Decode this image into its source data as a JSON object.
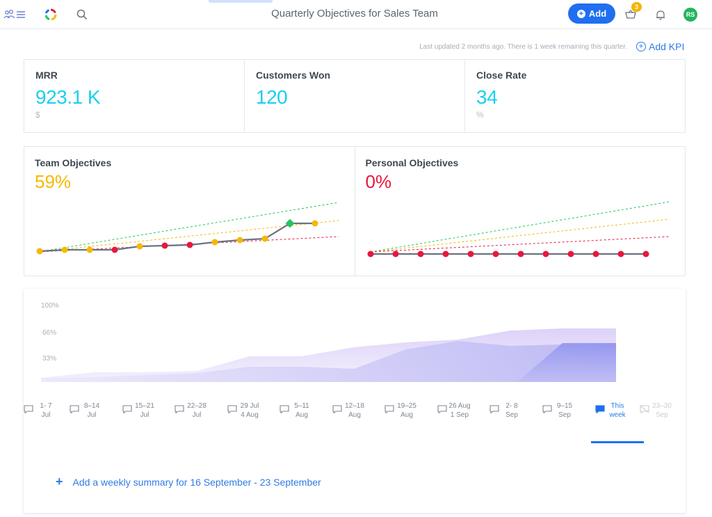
{
  "header": {
    "title": "Quarterly Objectives for Sales Team",
    "add_label": "Add",
    "notification_count": "3",
    "avatar_initials": "RS",
    "icons": [
      "people-menu-icon",
      "app-logo-icon",
      "search-icon",
      "basket-icon",
      "bell-icon"
    ]
  },
  "status": {
    "updated_text": "Last updated 2 months ago. There is 1 week remaining this quarter.",
    "add_kpi_label": "Add KPI"
  },
  "kpis": [
    {
      "label": "MRR",
      "value": "923.1 K",
      "unit": "$"
    },
    {
      "label": "Customers Won",
      "value": "120",
      "unit": ""
    },
    {
      "label": "Close Rate",
      "value": "34",
      "unit": "%"
    }
  ],
  "objectives": {
    "team": {
      "label": "Team Objectives",
      "value": "59%",
      "color": "#f6b800"
    },
    "personal": {
      "label": "Personal Objectives",
      "value": "0%",
      "color": "#e8173e"
    }
  },
  "weekly": {
    "yticks": [
      "100%",
      "66%",
      "33%"
    ],
    "weeks": [
      {
        "line1": "1- 7",
        "line2": "Jul",
        "state": "past"
      },
      {
        "line1": "8–14",
        "line2": "Jul",
        "state": "past"
      },
      {
        "line1": "15–21",
        "line2": "Jul",
        "state": "past"
      },
      {
        "line1": "22–28",
        "line2": "Jul",
        "state": "past"
      },
      {
        "line1": "29 Jul",
        "line2": "4 Aug",
        "state": "past"
      },
      {
        "line1": "5–11",
        "line2": "Aug",
        "state": "past"
      },
      {
        "line1": "12–18",
        "line2": "Aug",
        "state": "past"
      },
      {
        "line1": "19–25",
        "line2": "Aug",
        "state": "past"
      },
      {
        "line1": "26 Aug",
        "line2": "1 Sep",
        "state": "past"
      },
      {
        "line1": "2- 8",
        "line2": "Sep",
        "state": "past"
      },
      {
        "line1": "9–15",
        "line2": "Sep",
        "state": "past"
      },
      {
        "line1": "This",
        "line2": "week",
        "state": "current"
      },
      {
        "line1": "23–30",
        "line2": "Sep",
        "state": "future"
      }
    ],
    "add_summary_label": "Add a weekly summary for 16 September - 23 September"
  },
  "colors": {
    "accent": "#1f6ff0",
    "kpi_value": "#19d0ec",
    "on_track": "#22c55e",
    "target": "#f6b800",
    "behind": "#e8173e",
    "area_light": "#e9e1fb",
    "area_mid": "#cfc6f6",
    "area_dark": "#9b96ef"
  }
}
